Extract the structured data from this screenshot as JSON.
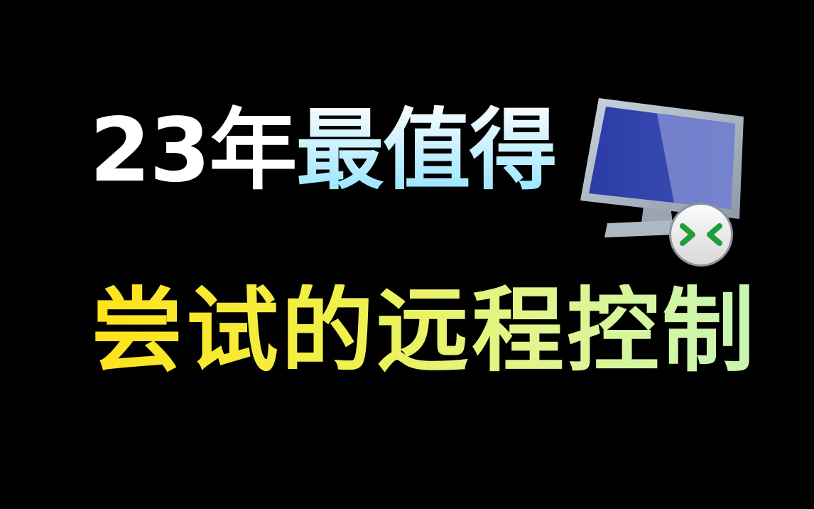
{
  "title": {
    "line1_year": "23年",
    "line1_highlight": "最值得",
    "line2": "尝试的远程控制"
  },
  "icon": {
    "name": "remote-desktop-icon",
    "screen_color": "#2e3fa8",
    "badge_arrow_color": "#1f9d3a"
  }
}
